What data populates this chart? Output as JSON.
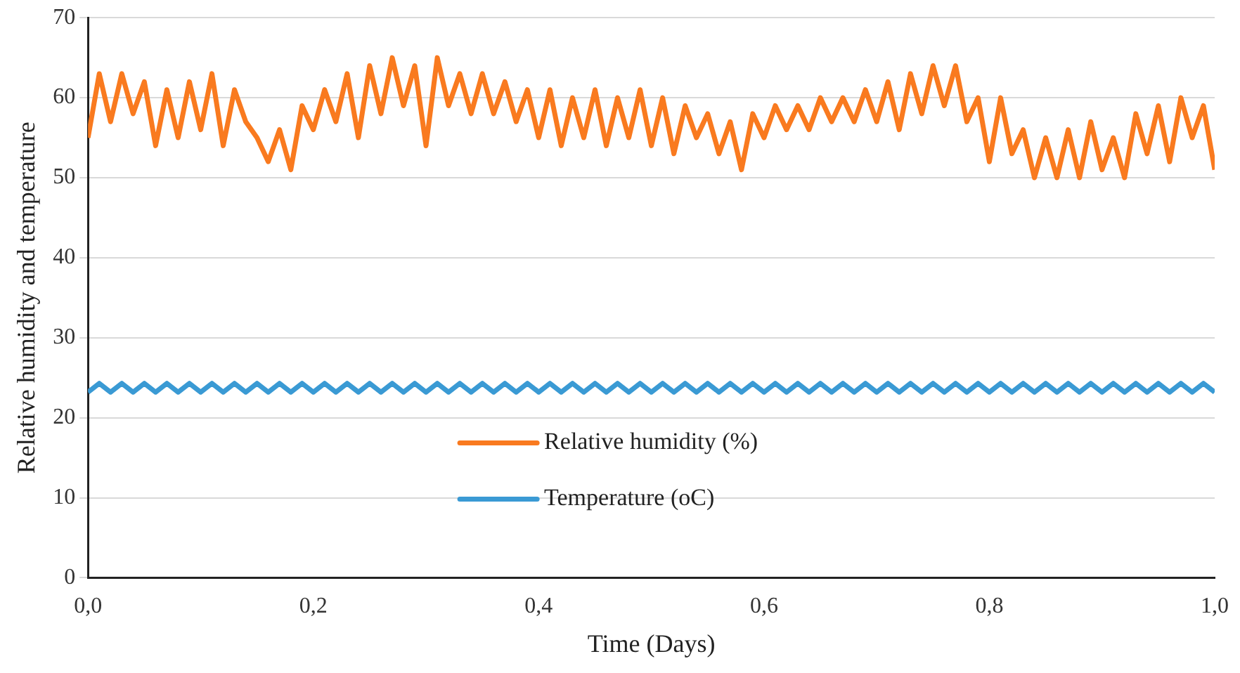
{
  "chart_data": {
    "type": "line",
    "xlabel": "Time (Days)",
    "ylabel": "Relative humidity and temperature",
    "x": [
      0,
      0.01,
      0.02,
      0.03,
      0.04,
      0.05,
      0.06,
      0.07,
      0.08,
      0.09,
      0.1,
      0.11,
      0.12,
      0.13,
      0.14,
      0.15,
      0.16,
      0.17,
      0.18,
      0.19,
      0.2,
      0.21,
      0.22,
      0.23,
      0.24,
      0.25,
      0.26,
      0.27,
      0.28,
      0.29,
      0.3,
      0.31,
      0.32,
      0.33,
      0.34,
      0.35,
      0.36,
      0.37,
      0.38,
      0.39,
      0.4,
      0.41,
      0.42,
      0.43,
      0.44,
      0.45,
      0.46,
      0.47,
      0.48,
      0.49,
      0.5,
      0.51,
      0.52,
      0.53,
      0.54,
      0.55,
      0.56,
      0.57,
      0.58,
      0.59,
      0.6,
      0.61,
      0.62,
      0.63,
      0.64,
      0.65,
      0.66,
      0.67,
      0.68,
      0.69,
      0.7,
      0.71,
      0.72,
      0.73,
      0.74,
      0.75,
      0.76,
      0.77,
      0.78,
      0.79,
      0.8,
      0.81,
      0.82,
      0.83,
      0.84,
      0.85,
      0.86,
      0.87,
      0.88,
      0.89,
      0.9,
      0.91,
      0.92,
      0.93,
      0.94,
      0.95,
      0.96,
      0.97,
      0.98,
      0.99,
      1
    ],
    "series": [
      {
        "name": "Relative humidity (%)",
        "color": "#f97a1f",
        "values": [
          55,
          63,
          57,
          63,
          58,
          62,
          54,
          61,
          55,
          62,
          56,
          63,
          54,
          61,
          57,
          55,
          52,
          56,
          51,
          59,
          56,
          61,
          57,
          63,
          55,
          64,
          58,
          65,
          59,
          64,
          54,
          65,
          59,
          63,
          58,
          63,
          58,
          62,
          57,
          61,
          55,
          61,
          54,
          60,
          55,
          61,
          54,
          60,
          55,
          61,
          54,
          60,
          53,
          59,
          55,
          58,
          53,
          57,
          51,
          58,
          55,
          59,
          56,
          59,
          56,
          60,
          57,
          60,
          57,
          61,
          57,
          62,
          56,
          63,
          58,
          64,
          59,
          64,
          57,
          60,
          52,
          60,
          53,
          56,
          50,
          55,
          50,
          56,
          50,
          57,
          51,
          55,
          50,
          58,
          53,
          59,
          52,
          60,
          55,
          59,
          51
        ]
      },
      {
        "name": "Temperature (oC)",
        "color": "#3a9ad4",
        "values": [
          23.2,
          24.3,
          23.2,
          24.3,
          23.2,
          24.3,
          23.2,
          24.3,
          23.2,
          24.3,
          23.2,
          24.3,
          23.2,
          24.3,
          23.2,
          24.3,
          23.2,
          24.3,
          23.2,
          24.3,
          23.2,
          24.3,
          23.2,
          24.3,
          23.2,
          24.3,
          23.2,
          24.3,
          23.2,
          24.3,
          23.2,
          24.3,
          23.2,
          24.3,
          23.2,
          24.3,
          23.2,
          24.3,
          23.2,
          24.3,
          23.2,
          24.3,
          23.2,
          24.3,
          23.2,
          24.3,
          23.2,
          24.3,
          23.2,
          24.3,
          23.2,
          24.3,
          23.2,
          24.3,
          23.2,
          24.3,
          23.2,
          24.3,
          23.2,
          24.3,
          23.2,
          24.3,
          23.2,
          24.3,
          23.2,
          24.3,
          23.2,
          24.3,
          23.2,
          24.3,
          23.2,
          24.3,
          23.2,
          24.3,
          23.2,
          24.3,
          23.2,
          24.3,
          23.2,
          24.3,
          23.2,
          24.3,
          23.2,
          24.3,
          23.2,
          24.3,
          23.2,
          24.3,
          23.2,
          24.3,
          23.2,
          24.3,
          23.2,
          24.3,
          23.2,
          24.3,
          23.2,
          24.3,
          23.2,
          24.3,
          23.2
        ]
      }
    ],
    "xlim": [
      0,
      1
    ],
    "xticks": [
      {
        "value": 0,
        "label": "0,0"
      },
      {
        "value": 0.2,
        "label": "0,2"
      },
      {
        "value": 0.4,
        "label": "0,4"
      },
      {
        "value": 0.6,
        "label": "0,6"
      },
      {
        "value": 0.8,
        "label": "0,8"
      },
      {
        "value": 1,
        "label": "1,0"
      }
    ],
    "ylim": [
      0,
      70
    ],
    "yticks": [
      0,
      10,
      20,
      30,
      40,
      50,
      60,
      70
    ],
    "grid": "y",
    "legend": "bottom",
    "marker": "none",
    "line_style": "solid"
  }
}
